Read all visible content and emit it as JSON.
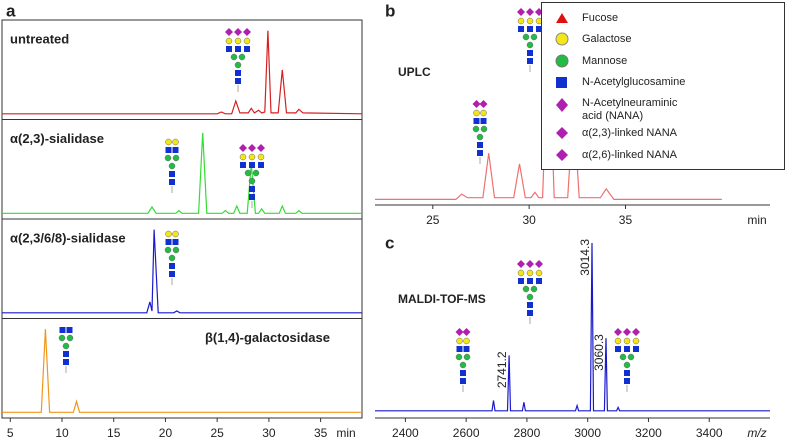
{
  "chart_data": [
    {
      "type": "line",
      "panel": "a",
      "xlabel": "min",
      "xlim": [
        4.2,
        39
      ],
      "xticks": [
        5,
        10,
        15,
        20,
        25,
        30,
        35
      ],
      "ylim": [
        0,
        100
      ],
      "series": [
        {
          "name": "untreated",
          "color": "#d42020",
          "x": [
            4.2,
            25,
            25.4,
            25.8,
            26.4,
            26.8,
            27.2,
            28.0,
            28.3,
            28.6,
            29.0,
            29.3,
            29.6,
            29.9,
            30.2,
            30.9,
            31.3,
            31.7,
            32.6,
            32.9,
            33.3,
            39
          ],
          "values": [
            4,
            4,
            6,
            4,
            4,
            18,
            5,
            5,
            10,
            5,
            8,
            5,
            6,
            95,
            5,
            5,
            52,
            5,
            5,
            9,
            5,
            4
          ]
        },
        {
          "name": "α(2,3)-sialidase",
          "color": "#33dd33",
          "x": [
            4.2,
            18.3,
            18.7,
            19.1,
            21.0,
            21.3,
            21.6,
            23.2,
            23.6,
            24.0,
            25.5,
            25.8,
            26.1,
            26.6,
            26.9,
            27.2,
            27.9,
            28.3,
            28.7,
            29.0,
            29.3,
            29.6,
            31.0,
            31.3,
            31.6,
            32.6,
            32.9,
            33.2,
            39
          ],
          "values": [
            4,
            4,
            11,
            4,
            4,
            7,
            4,
            4,
            92,
            4,
            4,
            7,
            4,
            4,
            12,
            4,
            4,
            58,
            4,
            4,
            9,
            4,
            4,
            12,
            4,
            4,
            7,
            4,
            4
          ]
        },
        {
          "name": "α(2,3/6/8)-sialidase",
          "color": "#1a1acc",
          "x": [
            4.2,
            18.2,
            18.5,
            18.7,
            18.9,
            19.3,
            20.8,
            21.1,
            21.4,
            39
          ],
          "values": [
            4,
            4,
            16,
            6,
            95,
            4,
            4,
            6,
            4,
            4
          ]
        },
        {
          "name": "β(1,4)-galactosidase",
          "color": "#f0961e",
          "x": [
            4.2,
            8.0,
            8.4,
            8.8,
            11.1,
            11.4,
            11.7,
            39
          ],
          "values": [
            4,
            4,
            95,
            4,
            4,
            16,
            4,
            4
          ]
        }
      ]
    },
    {
      "type": "line",
      "panel": "b",
      "title": "UPLC",
      "xlabel": "min",
      "xlim": [
        22,
        42.5
      ],
      "xticks": [
        25,
        30,
        35
      ],
      "ylim": [
        0,
        100
      ],
      "series": [
        {
          "color": "#f07070",
          "x": [
            22,
            26.2,
            26.5,
            26.8,
            27.6,
            27.9,
            28.2,
            29.2,
            29.5,
            29.8,
            30.1,
            30.3,
            30.5,
            30.7,
            31.0,
            31.3,
            32.0,
            32.3,
            32.6,
            33.7,
            34.0,
            34.4,
            40
          ],
          "values": [
            2,
            2,
            5,
            3,
            3,
            28,
            3,
            3,
            22,
            3,
            3,
            6,
            3,
            3,
            98,
            3,
            3,
            55,
            3,
            3,
            8,
            2,
            2
          ]
        }
      ]
    },
    {
      "type": "line",
      "panel": "c",
      "title": "MALDI-TOF-MS",
      "xlabel": "m/z",
      "xlim": [
        2300,
        3600
      ],
      "xticks": [
        2400,
        2600,
        2800,
        3000,
        3200,
        3400
      ],
      "ylim": [
        0,
        100
      ],
      "peak_labels": [
        2741.2,
        3014.3,
        3060.3
      ],
      "series": [
        {
          "color": "#1a1acc",
          "x": [
            2300,
            2685,
            2690,
            2695,
            2736,
            2741.2,
            2746,
            2785,
            2790,
            2795,
            2960,
            2965,
            2970,
            3009,
            3014.3,
            3019,
            3055,
            3060.3,
            3065,
            3095,
            3100,
            3105,
            3600
          ],
          "values": [
            3,
            3,
            9,
            3,
            3,
            35,
            3,
            3,
            8,
            3,
            3,
            6,
            3,
            3,
            100,
            3,
            3,
            45,
            3,
            3,
            5,
            3,
            3
          ]
        }
      ]
    }
  ],
  "legend": [
    "Fucose",
    "Galactose",
    "Mannose",
    "N-Acetylglucosamine",
    "N-Acetylneuraminic acid (NANA)",
    "α(2,3)-linked NANA",
    "α(2,6)-linked NANA"
  ]
}
